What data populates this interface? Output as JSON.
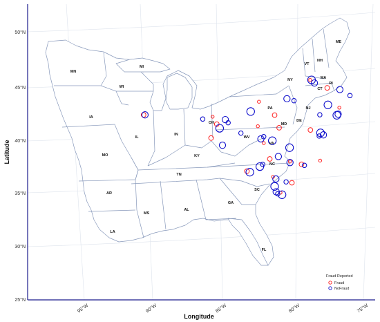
{
  "map": {
    "x_axis_title": "Longitude",
    "y_axis_title": "Latitude",
    "lat_ticks": [
      {
        "value": 50,
        "label": "50°N"
      },
      {
        "value": 45,
        "label": "45°N"
      },
      {
        "value": 40,
        "label": "40°N"
      },
      {
        "value": 35,
        "label": "35°N"
      },
      {
        "value": 30,
        "label": "30°N"
      },
      {
        "value": 25,
        "label": "25°N"
      }
    ],
    "lon_ticks": [
      {
        "value": -95,
        "label": "95°W"
      },
      {
        "value": -90,
        "label": "90°W"
      },
      {
        "value": -85,
        "label": "85°W"
      },
      {
        "value": -80,
        "label": "80°W"
      },
      {
        "value": -75,
        "label": "75°W"
      }
    ],
    "state_labels": [
      "MN",
      "WI",
      "MI",
      "IA",
      "IL",
      "IN",
      "OH",
      "MO",
      "KY",
      "TN",
      "AR",
      "MS",
      "AL",
      "GA",
      "LA",
      "FL",
      "SC",
      "NC",
      "VA",
      "WV",
      "MD",
      "DE",
      "NJ",
      "PA",
      "NY",
      "CT",
      "RI",
      "MA",
      "VT",
      "NH",
      "ME"
    ],
    "legend": {
      "title": "Fraud Reported",
      "fraud_label": "Fraud",
      "nofraud_label": "NoFraud",
      "fraud_color": "#ff2020",
      "nofraud_color": "#1010cc"
    },
    "colors": {
      "frame": "#1a1a8c",
      "state_border": "#8899bb",
      "graticule": "#dde3ec"
    }
  },
  "chart_data": {
    "type": "scatter",
    "xlabel": "Longitude",
    "ylabel": "Latitude",
    "legend_title": "Fraud Reported",
    "series": [
      {
        "name": "Fraud",
        "color": "#ff2020",
        "points": [
          [
            -90.6,
            42.6
          ],
          [
            -85.7,
            42.3
          ],
          [
            -85.4,
            41.6
          ],
          [
            -82.4,
            43.6
          ],
          [
            -81.3,
            42.3
          ],
          [
            -78.7,
            45.5
          ],
          [
            -77.5,
            44.7
          ],
          [
            -76.7,
            42.8
          ],
          [
            -81.0,
            41.1
          ],
          [
            -82.1,
            39.7
          ],
          [
            -81.7,
            38.2
          ],
          [
            -80.3,
            37.9
          ],
          [
            -79.5,
            37.6
          ],
          [
            -78.2,
            37.9
          ],
          [
            -83.3,
            37.1
          ],
          [
            -81.5,
            36.5
          ],
          [
            -80.2,
            35.9
          ],
          [
            -81.0,
            35.0
          ],
          [
            -78.8,
            40.8
          ],
          [
            -82.5,
            41.3
          ],
          [
            -85.8,
            40.3
          ]
        ]
      },
      {
        "name": "NoFraud",
        "color": "#1010cc",
        "points": [
          [
            -90.5,
            42.6
          ],
          [
            -86.4,
            42.1
          ],
          [
            -85.2,
            41.2
          ],
          [
            -84.8,
            42.0
          ],
          [
            -84.6,
            41.7
          ],
          [
            -83.0,
            42.7
          ],
          [
            -82.3,
            40.1
          ],
          [
            -82.1,
            40.3
          ],
          [
            -81.5,
            39.9
          ],
          [
            -80.4,
            43.8
          ],
          [
            -79.9,
            43.6
          ],
          [
            -78.6,
            45.5
          ],
          [
            -78.4,
            45.2
          ],
          [
            -78.1,
            42.2
          ],
          [
            -77.5,
            43.1
          ],
          [
            -76.6,
            44.5
          ],
          [
            -75.9,
            43.9
          ],
          [
            -78.1,
            40.5
          ],
          [
            -77.9,
            40.3
          ],
          [
            -78.2,
            40.2
          ],
          [
            -80.3,
            39.2
          ],
          [
            -81.1,
            38.4
          ],
          [
            -82.2,
            37.7
          ],
          [
            -82.4,
            37.5
          ],
          [
            -80.3,
            37.8
          ],
          [
            -79.3,
            37.5
          ],
          [
            -83.1,
            37.0
          ],
          [
            -81.3,
            36.3
          ],
          [
            -80.6,
            36.0
          ],
          [
            -81.4,
            35.6
          ],
          [
            -81.3,
            35.1
          ],
          [
            -81.2,
            34.9
          ],
          [
            -80.9,
            34.8
          ],
          [
            -85.0,
            39.6
          ],
          [
            -83.7,
            40.7
          ],
          [
            -76.9,
            42.1
          ],
          [
            -76.8,
            42.2
          ]
        ]
      }
    ]
  }
}
